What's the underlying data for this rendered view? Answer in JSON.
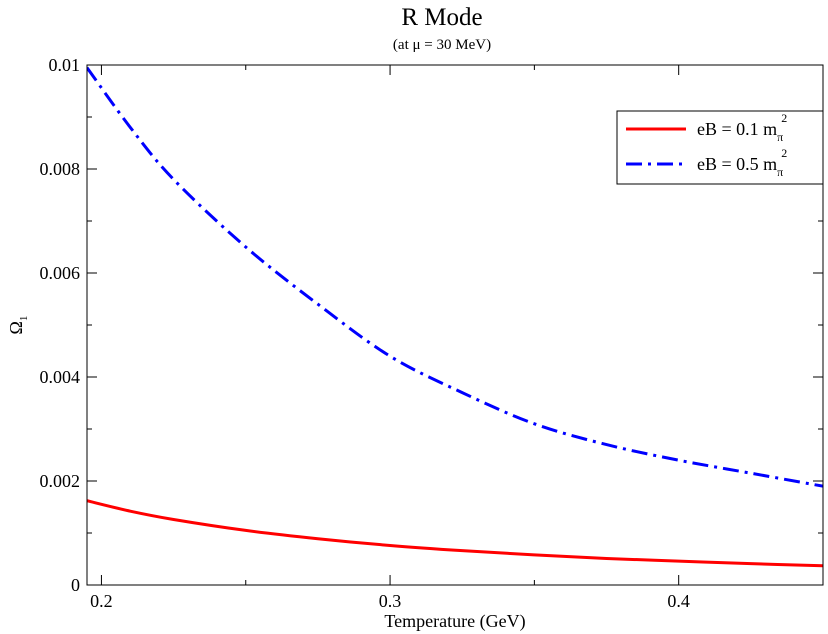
{
  "chart_data": {
    "type": "line",
    "title": "R Mode",
    "subtitle": "(at μ = 30 MeV)",
    "xlabel": "Temperature (GeV)",
    "ylabel": {
      "main": "Ω",
      "sub": "1"
    },
    "xlim": [
      0.195,
      0.45
    ],
    "ylim": [
      0,
      0.01
    ],
    "x_ticks": [
      {
        "value": 0.2,
        "label": "0.2"
      },
      {
        "value": 0.3,
        "label": "0.3"
      },
      {
        "value": 0.4,
        "label": "0.4"
      }
    ],
    "y_ticks": [
      {
        "value": 0,
        "label": "0"
      },
      {
        "value": 0.002,
        "label": "0.002"
      },
      {
        "value": 0.004,
        "label": "0.004"
      },
      {
        "value": 0.006,
        "label": "0.006"
      },
      {
        "value": 0.008,
        "label": "0.008"
      },
      {
        "value": 0.01,
        "label": "0.01"
      }
    ],
    "grid": false,
    "legend_position": "top-right",
    "series": [
      {
        "legend": {
          "prefix": "eB = 0.1 m",
          "sub": "π",
          "sup": "2"
        },
        "color": "#ff0000",
        "style": "solid",
        "x": [
          0.195,
          0.21,
          0.225,
          0.25,
          0.275,
          0.3,
          0.325,
          0.35,
          0.375,
          0.4,
          0.425,
          0.45
        ],
        "y": [
          0.00162,
          0.00142,
          0.00126,
          0.00105,
          0.00089,
          0.00076,
          0.00066,
          0.00058,
          0.00051,
          0.00046,
          0.00041,
          0.00037
        ]
      },
      {
        "legend": {
          "prefix": "eB = 0.5 m",
          "sub": "π",
          "sup": "2"
        },
        "color": "#0000ff",
        "style": "dashdot",
        "x": [
          0.195,
          0.21,
          0.225,
          0.25,
          0.275,
          0.3,
          0.325,
          0.35,
          0.375,
          0.4,
          0.425,
          0.45
        ],
        "y": [
          0.00995,
          0.0088,
          0.0078,
          0.0065,
          0.0054,
          0.0044,
          0.0037,
          0.0031,
          0.0027,
          0.0024,
          0.00215,
          0.0019
        ]
      }
    ]
  }
}
